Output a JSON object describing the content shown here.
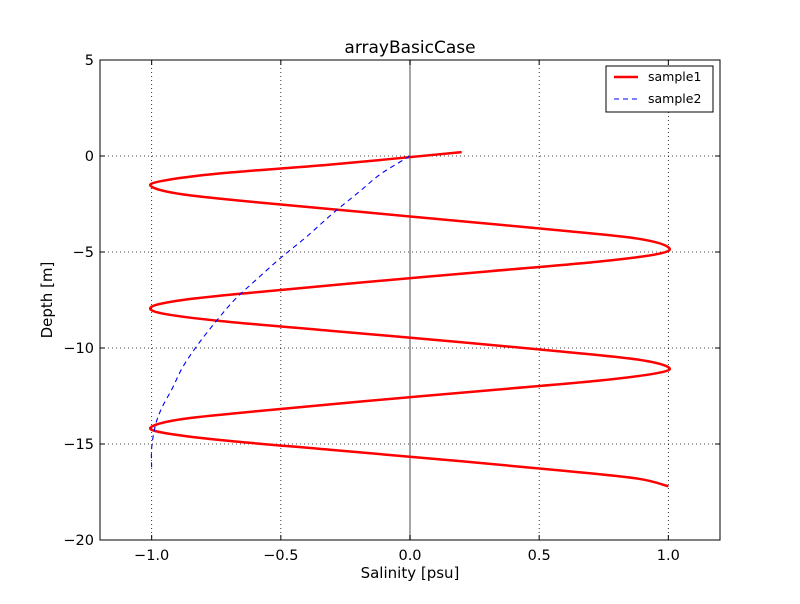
{
  "chart_data": {
    "type": "line",
    "title": "arrayBasicCase",
    "xlabel": "Salinity [psu]",
    "ylabel": "Depth [m]",
    "xlim": [
      -1.2,
      1.2
    ],
    "ylim": [
      -20,
      5
    ],
    "xticks": [
      -1.0,
      -0.5,
      0.0,
      0.5,
      1.0
    ],
    "xtick_labels": [
      "−1.0",
      "−0.5",
      "0.0",
      "0.5",
      "1.0"
    ],
    "yticks": [
      5,
      0,
      -5,
      -10,
      -15,
      -20
    ],
    "ytick_labels": [
      "5",
      "0",
      "−5",
      "−10",
      "−15",
      "−20"
    ],
    "grid": true,
    "legend_position": "top-right",
    "reference_line_x": 0,
    "series": [
      {
        "name": "sample1",
        "color": "#ff0000",
        "style": "solid",
        "x": [
          0.2,
          -0.31,
          -0.73,
          -0.96,
          -1.0,
          -0.88,
          -0.6,
          -0.2,
          0.2,
          0.6,
          0.88,
          1.0,
          0.96,
          0.73,
          0.31,
          -0.2,
          -0.6,
          -0.88,
          -1.0,
          -0.96,
          -0.73,
          -0.31,
          0.2,
          0.6,
          0.88,
          1.0,
          0.96,
          0.73,
          0.31,
          -0.2,
          -0.6,
          -0.88,
          -1.0,
          -0.96,
          -0.73,
          -0.31,
          0.2,
          0.6,
          0.88,
          1.0
        ],
        "y": [
          0.2,
          -0.45,
          -0.9,
          -1.3,
          -1.6,
          -2.0,
          -2.4,
          -2.9,
          -3.4,
          -3.9,
          -4.3,
          -4.75,
          -5.1,
          -5.5,
          -6.0,
          -6.6,
          -7.1,
          -7.5,
          -7.85,
          -8.2,
          -8.6,
          -9.1,
          -9.7,
          -10.2,
          -10.6,
          -11.0,
          -11.3,
          -11.7,
          -12.2,
          -12.8,
          -13.3,
          -13.7,
          -14.1,
          -14.4,
          -14.8,
          -15.3,
          -15.9,
          -16.4,
          -16.8,
          -17.2
        ]
      },
      {
        "name": "sample2",
        "color": "#0000ff",
        "style": "dashed",
        "x": [
          0.0,
          -0.05,
          -0.12,
          -0.2,
          -0.3,
          -0.4,
          -0.5,
          -0.6,
          -0.68,
          -0.75,
          -0.82,
          -0.88,
          -0.92,
          -0.96,
          -0.985,
          -1.0,
          -1.0
        ],
        "y": [
          0.0,
          -0.4,
          -1.0,
          -1.9,
          -3.0,
          -4.2,
          -5.3,
          -6.5,
          -7.5,
          -8.6,
          -9.8,
          -11.0,
          -12.1,
          -13.1,
          -14.0,
          -15.2,
          -16.3
        ]
      }
    ]
  }
}
